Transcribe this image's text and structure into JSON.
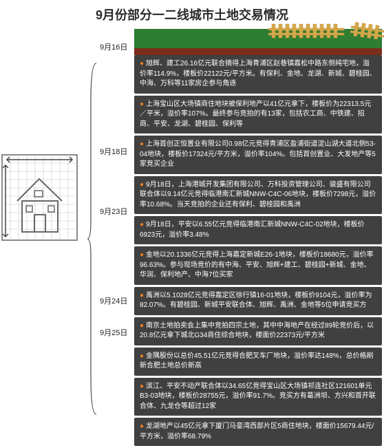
{
  "title": "9月份部分一二线城市土地交易情况",
  "dates": [
    "9月16日",
    "9月18日",
    "9月23日",
    "9月24日",
    "9月25日"
  ],
  "events": [
    {
      "d": 0,
      "t": "旭辉、建工26.16亿元联合摘得上海青浦区赵巷镇嘉松中路东侧纯宅地，溢价率114.9%，楼板价22122元/平方米。有保利、金地、龙湖、新城、碧桂园、中海、万科等11家房企参与角逐"
    },
    {
      "d": 0,
      "t": "上海宝山区大场镇商住地块被保利地产以41亿元拿下，楼板价为22313.5元／平米，溢价率107%。最终参与竞拍的有13家，包括农工商、中铁建、招商、平安、龙湖、碧桂园、保利等"
    },
    {
      "d": 0,
      "t": "上海首创正恒置业有限公司0.98亿元竞得青浦区盈浦街道淀山湖大道北侧53-04地块，楼板价17324元/平方米，溢价率104%。包括首创置业、大发地产等5家竞买企业"
    },
    {
      "d": 1,
      "t": "9月18日，上海港城开发集团有限公司、万科投资管理公司、骏盛有限公司联合体以9.14亿元竞得临港南汇新城NNW-C4C-06地块，楼板价7298元，溢价率10.68%。当天竞拍的企业还有保利、碧桂园和禹洲"
    },
    {
      "d": 1,
      "t": "9月18日，平安以6.55亿元竞得临港南汇新城NNW-C4C-02地块，楼板价6923元，溢价率3.48%"
    },
    {
      "d": 2,
      "t": "金地以20.1336亿元竞得上海嘉定新城E26-1地块，楼板价18680元，溢价率96.63%。参与现场竞价的有中海、平安、旭辉+建工、碧桂园+新城、金地、华润、保利地产、中海7位买家"
    },
    {
      "d": 2,
      "t": "禹洲以5.1028亿元竞得嘉定区徐行镇16-01地块，楼板价9104元，溢价率为82.07%。有碧桂园、新城平安联合体、旭辉、禹洲、金地等5位申请竞买方"
    },
    {
      "d": 2,
      "t": "南京土地拍卖会上集中竞拍四宗土地，其中中海地产在经过89轮竞价后，以20.8亿元拿下城北G34商住综合地块，楼面价22373元/平方米"
    },
    {
      "d": 3,
      "t": "金隅股份以总价45.51亿元竞得合肥叉车厂地块，溢价率达148%，总价格刷新合肥土地总价新高"
    },
    {
      "d": 4,
      "t": "滨江、平安不动产联合体以34.65亿竞得宝山区大场镇祁连社区121601单元B3-03地块，楼板价28755元，溢价率91.7%。竞买方有葛洲坝、方兴和首开联合体、九龙仓等超过12家"
    },
    {
      "d": 4,
      "t": "龙湖地产以45亿元拿下厦门马銮湾西部片区5商住地块，楼面价15679.44元/平方米，溢价率68.79%"
    }
  ],
  "colors": {
    "block": "#404040",
    "bullet": "#e67e22",
    "grass": "#2e7d32",
    "soil": "#7a2e1c",
    "fence": "#d4a84b",
    "house": "#8a8a8a"
  }
}
